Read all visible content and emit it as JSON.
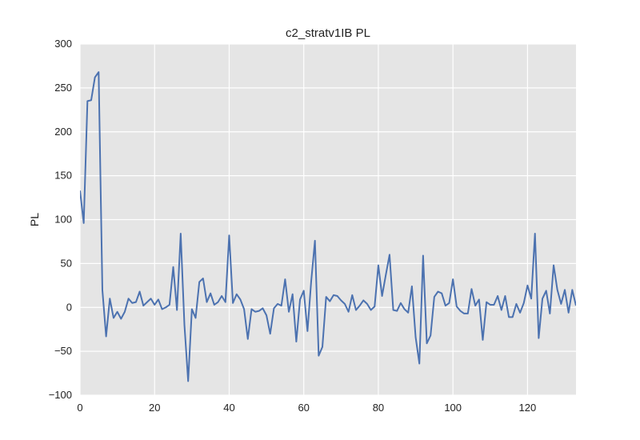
{
  "chart_data": {
    "type": "line",
    "title": "c2_stratv1IB PL",
    "xlabel": "",
    "ylabel": "PL",
    "xlim": [
      0,
      133
    ],
    "ylim": [
      -100,
      300
    ],
    "xticks": [
      0,
      20,
      40,
      60,
      80,
      100,
      120
    ],
    "yticks": [
      -100,
      -50,
      0,
      50,
      100,
      150,
      200,
      250,
      300
    ],
    "grid": true,
    "legend": "none",
    "colors": {
      "background": "#e5e5e5",
      "grid": "#ffffff",
      "line": "#4c72b0"
    },
    "series": [
      {
        "x": [
          0,
          1,
          2,
          3,
          4,
          5,
          6,
          7,
          8,
          9,
          10,
          11,
          12,
          13,
          14,
          15,
          16,
          17,
          18,
          19,
          20,
          21,
          22,
          23,
          24,
          25,
          26,
          27,
          28,
          29,
          30,
          31,
          32,
          33,
          34,
          35,
          36,
          37,
          38,
          39,
          40,
          41,
          42,
          43,
          44,
          45,
          46,
          47,
          48,
          49,
          50,
          51,
          52,
          53,
          54,
          55,
          56,
          57,
          58,
          59,
          60,
          61,
          62,
          63,
          64,
          65,
          66,
          67,
          68,
          69,
          70,
          71,
          72,
          73,
          74,
          75,
          76,
          77,
          78,
          79,
          80,
          81,
          82,
          83,
          84,
          85,
          86,
          87,
          88,
          89,
          90,
          91,
          92,
          93,
          94,
          95,
          96,
          97,
          98,
          99,
          100,
          101,
          102,
          103,
          104,
          105,
          106,
          107,
          108,
          109,
          110,
          111,
          112,
          113,
          114,
          115,
          116,
          117,
          118,
          119,
          120,
          121,
          122,
          123,
          124,
          125,
          126,
          127,
          128,
          129,
          130,
          131,
          132,
          133
        ],
        "values": [
          133,
          96,
          235,
          236,
          262,
          268,
          20,
          -33,
          10,
          -12,
          -5,
          -13,
          -5,
          10,
          5,
          6,
          18,
          2,
          6,
          10,
          3,
          9,
          -2,
          0,
          3,
          46,
          -3,
          84,
          -20,
          -84,
          -2,
          -12,
          29,
          33,
          6,
          16,
          3,
          6,
          13,
          6,
          82,
          5,
          15,
          9,
          -2,
          -36,
          -2,
          -5,
          -4,
          -1,
          -9,
          -30,
          -1,
          4,
          2,
          32,
          -5,
          15,
          -39,
          9,
          19,
          -27,
          30,
          76,
          -55,
          -45,
          12,
          7,
          14,
          13,
          8,
          4,
          -5,
          14,
          -3,
          2,
          8,
          4,
          -3,
          1,
          48,
          13,
          37,
          60,
          -3,
          -4,
          5,
          -2,
          -6,
          24,
          -34,
          -64,
          59,
          -41,
          -32,
          12,
          18,
          16,
          2,
          5,
          32,
          1,
          -4,
          -7,
          -7,
          21,
          2,
          9,
          -37,
          6,
          3,
          3,
          13,
          -3,
          13,
          -11,
          -11,
          4,
          -6,
          5,
          25,
          10,
          84,
          -35,
          10,
          19,
          -7,
          48,
          20,
          4,
          20,
          -6,
          20,
          2
        ]
      }
    ]
  }
}
